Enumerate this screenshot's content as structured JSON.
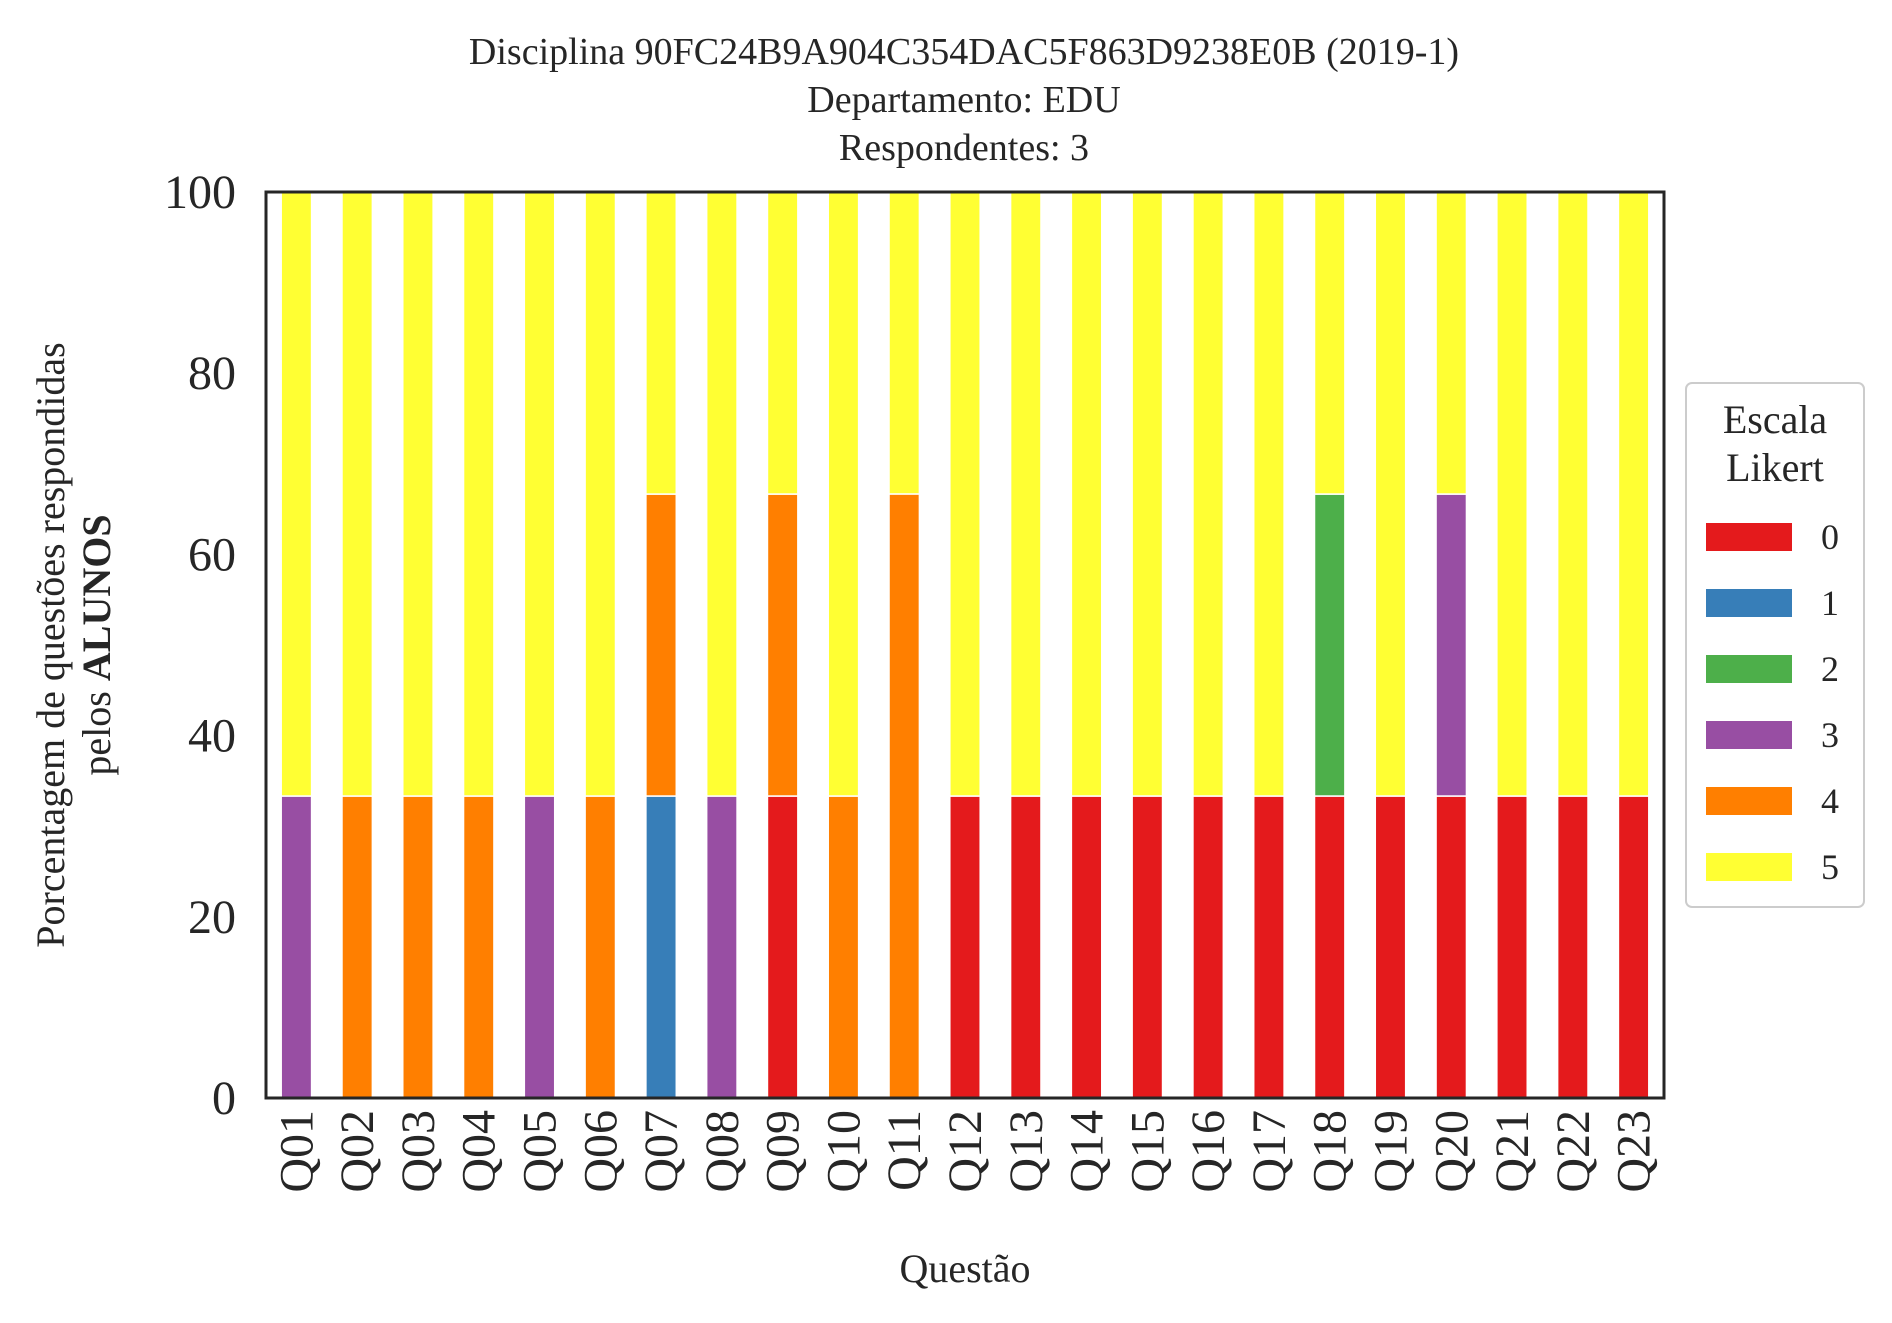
{
  "chart_data": {
    "type": "bar",
    "stacked": true,
    "title": [
      "Disciplina 90FC24B9A904C354DAC5F863D9238E0B (2019-1)",
      "Departamento: EDU",
      "Respondentes: 3"
    ],
    "xlabel": "Questão",
    "ylabel": {
      "line1": "Porcentagem de questões respondidas",
      "line2_prefix": "pelos ",
      "line2_bold": "ALUNOS"
    },
    "ylim": [
      0,
      100
    ],
    "yticks": [
      "0",
      "20",
      "40",
      "60",
      "80",
      "100"
    ],
    "grid": false,
    "legend": {
      "title": [
        "Escala",
        "Likert"
      ],
      "placement": "right"
    },
    "categories": [
      "Q01",
      "Q02",
      "Q03",
      "Q04",
      "Q05",
      "Q06",
      "Q07",
      "Q08",
      "Q09",
      "Q10",
      "Q11",
      "Q12",
      "Q13",
      "Q14",
      "Q15",
      "Q16",
      "Q17",
      "Q18",
      "Q19",
      "Q20",
      "Q21",
      "Q22",
      "Q23"
    ],
    "series": [
      {
        "name": "0",
        "color": "#e41a1c",
        "values": [
          0,
          0,
          0,
          0,
          0,
          0,
          0,
          0,
          33.33,
          0,
          0,
          33.33,
          33.33,
          33.33,
          33.33,
          33.33,
          33.33,
          33.33,
          33.33,
          33.33,
          33.33,
          33.33,
          33.33
        ]
      },
      {
        "name": "1",
        "color": "#377eb8",
        "values": [
          0,
          0,
          0,
          0,
          0,
          0,
          33.33,
          0,
          0,
          0,
          0,
          0,
          0,
          0,
          0,
          0,
          0,
          0,
          0,
          0,
          0,
          0,
          0
        ]
      },
      {
        "name": "2",
        "color": "#4daf4a",
        "values": [
          0,
          0,
          0,
          0,
          0,
          0,
          0,
          0,
          0,
          0,
          0,
          0,
          0,
          0,
          0,
          0,
          0,
          33.33,
          0,
          0,
          0,
          0,
          0
        ]
      },
      {
        "name": "3",
        "color": "#984ea3",
        "values": [
          33.33,
          0,
          0,
          0,
          33.33,
          0,
          0,
          33.33,
          0,
          0,
          0,
          0,
          0,
          0,
          0,
          0,
          0,
          0,
          0,
          33.33,
          0,
          0,
          0
        ]
      },
      {
        "name": "4",
        "color": "#ff7f00",
        "values": [
          0,
          33.33,
          33.33,
          33.33,
          0,
          33.33,
          33.33,
          0,
          33.33,
          33.33,
          66.67,
          0,
          0,
          0,
          0,
          0,
          0,
          0,
          0,
          0,
          0,
          0,
          0
        ]
      },
      {
        "name": "5",
        "color": "#ffff33",
        "values": [
          66.67,
          66.67,
          66.67,
          66.67,
          66.67,
          66.67,
          33.33,
          66.67,
          33.33,
          66.67,
          33.33,
          66.67,
          66.67,
          66.67,
          66.67,
          66.67,
          66.67,
          33.33,
          66.67,
          33.33,
          66.67,
          66.67,
          66.67
        ]
      }
    ]
  }
}
